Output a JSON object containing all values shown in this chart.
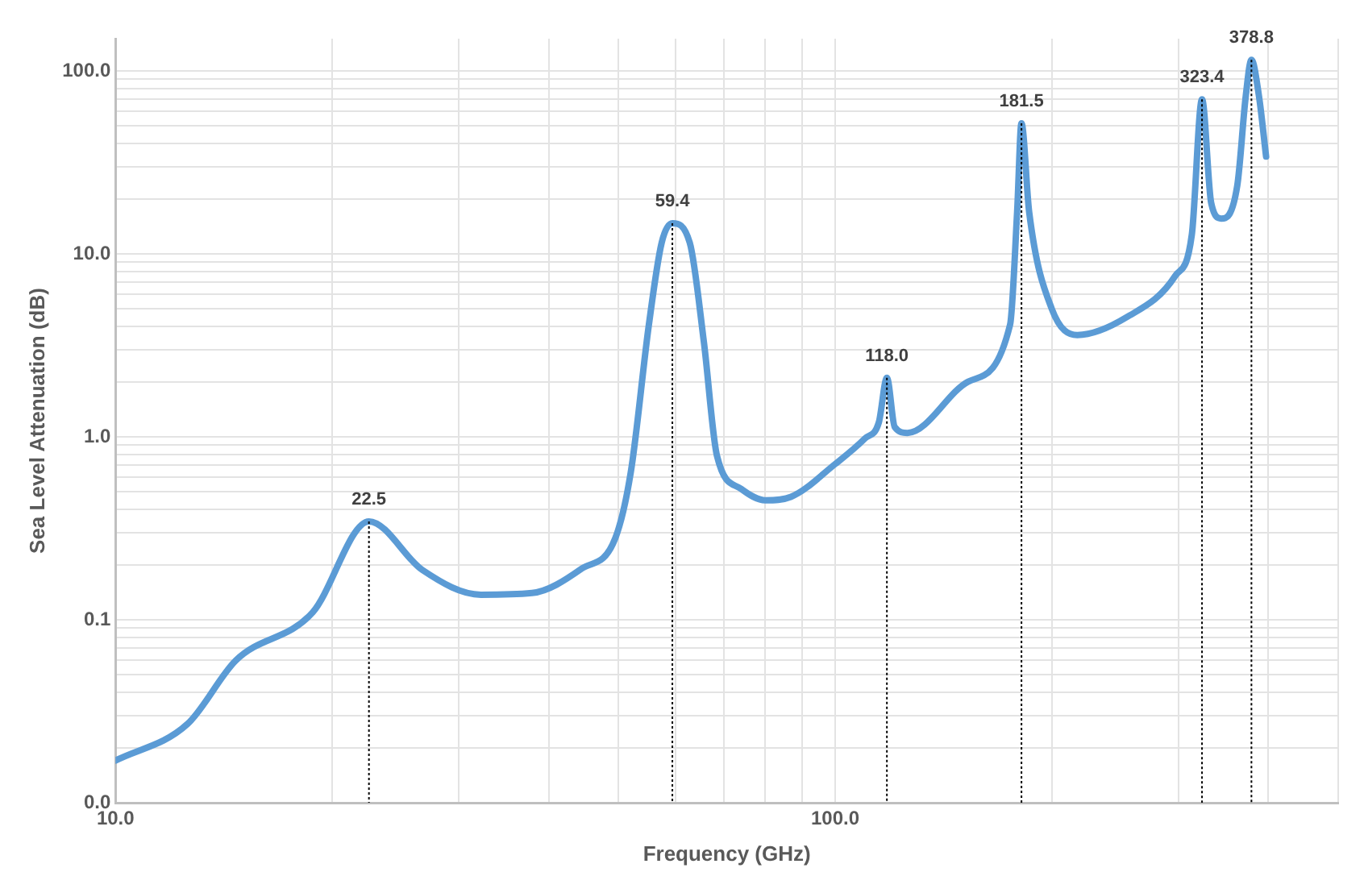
{
  "chart_data": {
    "type": "line",
    "xlabel": "Frequency (GHz)",
    "ylabel": "Sea Level Attenuation (dB)",
    "log": "xy",
    "grid": true,
    "marker": "none",
    "line_style": "solid",
    "xlim": [
      10,
      500
    ],
    "ylim": [
      0.01,
      150
    ],
    "xticks": [
      {
        "value": 10,
        "label": "10.0"
      },
      {
        "value": 20,
        "label": null
      },
      {
        "value": 30,
        "label": null
      },
      {
        "value": 40,
        "label": null
      },
      {
        "value": 50,
        "label": null
      },
      {
        "value": 60,
        "label": null
      },
      {
        "value": 70,
        "label": null
      },
      {
        "value": 80,
        "label": null
      },
      {
        "value": 90,
        "label": null
      },
      {
        "value": 100,
        "label": "100.0"
      },
      {
        "value": 200,
        "label": null
      },
      {
        "value": 300,
        "label": null
      },
      {
        "value": 400,
        "label": null
      },
      {
        "value": 500,
        "label": null
      }
    ],
    "yticks": [
      {
        "value": 0.01,
        "label": "0.0"
      },
      {
        "value": 0.02,
        "label": null
      },
      {
        "value": 0.03,
        "label": null
      },
      {
        "value": 0.04,
        "label": null
      },
      {
        "value": 0.05,
        "label": null
      },
      {
        "value": 0.06,
        "label": null
      },
      {
        "value": 0.07,
        "label": null
      },
      {
        "value": 0.08,
        "label": null
      },
      {
        "value": 0.09,
        "label": null
      },
      {
        "value": 0.1,
        "label": "0.1"
      },
      {
        "value": 0.2,
        "label": null
      },
      {
        "value": 0.3,
        "label": null
      },
      {
        "value": 0.4,
        "label": null
      },
      {
        "value": 0.5,
        "label": null
      },
      {
        "value": 0.6,
        "label": null
      },
      {
        "value": 0.7,
        "label": null
      },
      {
        "value": 0.8,
        "label": null
      },
      {
        "value": 0.9,
        "label": null
      },
      {
        "value": 1,
        "label": "1.0"
      },
      {
        "value": 2,
        "label": null
      },
      {
        "value": 3,
        "label": null
      },
      {
        "value": 4,
        "label": null
      },
      {
        "value": 5,
        "label": null
      },
      {
        "value": 6,
        "label": null
      },
      {
        "value": 7,
        "label": null
      },
      {
        "value": 8,
        "label": null
      },
      {
        "value": 9,
        "label": null
      },
      {
        "value": 10,
        "label": "10.0"
      },
      {
        "value": 20,
        "label": null
      },
      {
        "value": 30,
        "label": null
      },
      {
        "value": 40,
        "label": null
      },
      {
        "value": 50,
        "label": null
      },
      {
        "value": 60,
        "label": null
      },
      {
        "value": 70,
        "label": null
      },
      {
        "value": 80,
        "label": null
      },
      {
        "value": 90,
        "label": null
      },
      {
        "value": 100,
        "label": "100.0"
      }
    ],
    "series": [
      {
        "color": "#5b9bd5",
        "x": [
          10,
          12.6,
          14.7,
          18.8,
          22.5,
          26.7,
          32.2,
          37.9,
          44.4,
          49.5,
          52,
          55.1,
          57.4,
          59.4,
          62.8,
          65.7,
          68.5,
          74,
          80,
          86.8,
          100,
          110,
          115,
          118,
          121,
          126,
          153,
          175,
          179,
          181.5,
          186,
          200,
          217,
          254,
          297,
          313,
          323.4,
          333,
          344,
          362,
          372,
          378.8,
          388,
          397
        ],
        "values": [
          0.017,
          0.027,
          0.06,
          0.11,
          0.345,
          0.187,
          0.137,
          0.14,
          0.19,
          0.28,
          0.64,
          4.1,
          11.5,
          14.7,
          11.5,
          3.3,
          0.79,
          0.52,
          0.45,
          0.47,
          0.71,
          0.98,
          1.2,
          2.1,
          1.13,
          1.05,
          2,
          4.1,
          17,
          51.7,
          17,
          5,
          3.6,
          4.5,
          7.6,
          12.7,
          70,
          19,
          15.6,
          23.6,
          73,
          115,
          73,
          34
        ]
      }
    ],
    "annotations": [
      {
        "text": "22.5",
        "x": 22.5,
        "y": 0.345
      },
      {
        "text": "59.4",
        "x": 59.4,
        "y": 14.7
      },
      {
        "text": "118.0",
        "x": 118,
        "y": 2.1
      },
      {
        "text": "181.5",
        "x": 181.5,
        "y": 51.7
      },
      {
        "text": "323.4",
        "x": 323.4,
        "y": 70
      },
      {
        "text": "378.8",
        "x": 378.8,
        "y": 115
      }
    ]
  }
}
